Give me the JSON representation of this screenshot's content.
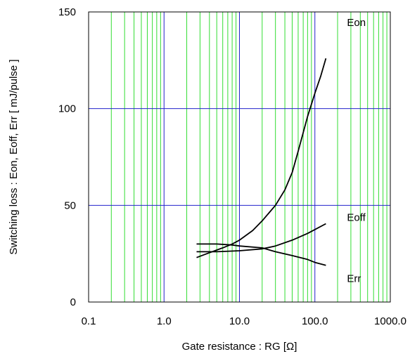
{
  "chart_data": {
    "type": "line",
    "xscale": "log",
    "xlim": [
      0.1,
      1000
    ],
    "ylim": [
      0,
      150
    ],
    "xlabel": "Gate resistance : RG [Ω]",
    "ylabel": "Switching loss  :  Eon, Eoff, Err  [ mJ/pulse ]",
    "xticks": [
      "0.1",
      "1.0",
      "10.0",
      "100.0",
      "1000.0"
    ],
    "yticks": [
      "0",
      "50",
      "100",
      "150"
    ],
    "grid": {
      "major": true,
      "minor": true
    },
    "series": [
      {
        "name": "Eon",
        "x": [
          2.7,
          4,
          6,
          8,
          10,
          15,
          20,
          30,
          40,
          50,
          60,
          80,
          100,
          120,
          140
        ],
        "y": [
          23,
          25.5,
          28,
          30,
          32,
          37,
          42,
          50,
          58,
          67,
          78,
          96,
          108,
          117,
          126
        ]
      },
      {
        "name": "Eoff",
        "x": [
          2.7,
          5,
          10,
          20,
          30,
          50,
          80,
          100,
          140
        ],
        "y": [
          26,
          26,
          26.5,
          27.5,
          29,
          32,
          35.5,
          37.5,
          40.5
        ]
      },
      {
        "name": "Err",
        "x": [
          2.7,
          5,
          8,
          10,
          20,
          30,
          50,
          80,
          100,
          140
        ],
        "y": [
          30,
          30,
          29.5,
          29,
          28,
          26,
          24,
          22,
          20.5,
          19
        ]
      }
    ]
  }
}
